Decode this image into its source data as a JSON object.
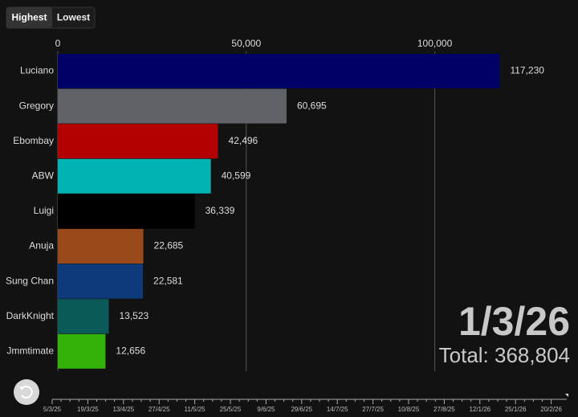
{
  "buttons": [
    "Highest",
    "Lowest"
  ],
  "chart_data": {
    "type": "bar",
    "orientation": "horizontal",
    "categories": [
      "Luciano",
      "Gregory",
      "Ebombay",
      "ABW",
      "Luigi",
      "Anuja",
      "Sung Chan",
      "DarkKnight",
      "Jmmtimate"
    ],
    "values": [
      117230,
      60695,
      42496,
      40599,
      36339,
      22685,
      22581,
      13523,
      12656
    ],
    "value_labels": [
      "117,230",
      "60,695",
      "42,496",
      "40,599",
      "36,339",
      "22,685",
      "22,581",
      "13,523",
      "12,656"
    ],
    "colors": [
      "#000066",
      "#5f6368",
      "#b30000",
      "#00b3b3",
      "#000000",
      "#9a4a1a",
      "#0d3a7a",
      "#0b5a5a",
      "#33b30a"
    ],
    "xlim": [
      0,
      138000
    ],
    "xticks": [
      0,
      {
        "value": 50000,
        "label": "50,000"
      },
      {
        "value": 100000,
        "label": "100,000"
      }
    ],
    "grid": true,
    "date": "1/3/26",
    "total_label": "Total: 368,804"
  },
  "timeline": {
    "labels": [
      "5/3/25",
      "19/3/25",
      "13/4/25",
      "27/4/25",
      "11/5/25",
      "25/5/25",
      "9/6/25",
      "29/6/25",
      "14/7/25",
      "27/7/25",
      "10/8/25",
      "27/8/25",
      "12/1/26",
      "25/1/26",
      "20/2/26"
    ]
  }
}
